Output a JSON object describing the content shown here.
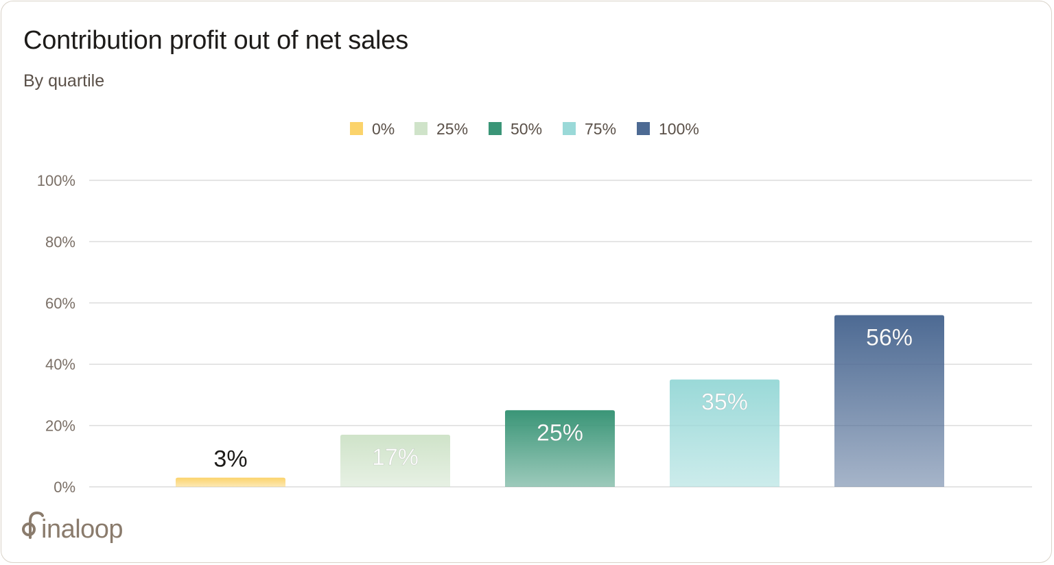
{
  "title": "Contribution profit out of net sales",
  "subtitle": "By quartile",
  "logo": {
    "text": "finaloop",
    "color": "#8a7b6c"
  },
  "colors": {
    "grid": "#dcdcdc",
    "tick_text": "#7a6f66",
    "legend_text": "#5a5048"
  },
  "chart_data": {
    "type": "bar",
    "categories": [
      "0%",
      "25%",
      "50%",
      "75%",
      "100%"
    ],
    "values": [
      3,
      17,
      25,
      35,
      56
    ],
    "data_labels": [
      "3%",
      "17%",
      "25%",
      "35%",
      "56%"
    ],
    "label_colors": [
      "#1d1b19",
      "#ffffff",
      "#ffffff",
      "#ffffff",
      "#ffffff"
    ],
    "colors": [
      "#fbd36b",
      "#cfe3c9",
      "#3a9577",
      "#9ad9d8",
      "#4d6a93"
    ],
    "legend": [
      "0%",
      "25%",
      "50%",
      "75%",
      "100%"
    ],
    "legend_position": "top-center",
    "ylim": [
      0,
      100
    ],
    "yticks": [
      0,
      20,
      40,
      60,
      80,
      100
    ],
    "ytick_labels": [
      "0%",
      "20%",
      "40%",
      "60%",
      "80%",
      "100%"
    ],
    "grid": true,
    "xlabel": "",
    "ylabel": ""
  }
}
